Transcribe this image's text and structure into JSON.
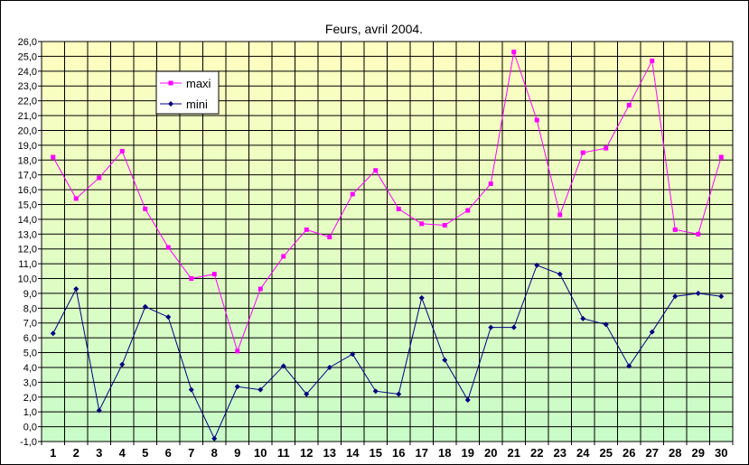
{
  "chart_data": {
    "type": "line",
    "title": "Feurs, avril 2004.",
    "xlabel": "",
    "ylabel": "",
    "categories": [
      "1",
      "2",
      "3",
      "4",
      "5",
      "6",
      "7",
      "8",
      "9",
      "10",
      "11",
      "12",
      "13",
      "14",
      "15",
      "16",
      "17",
      "18",
      "19",
      "20",
      "21",
      "22",
      "23",
      "24",
      "25",
      "26",
      "27",
      "28",
      "29",
      "30"
    ],
    "ylim": [
      -1,
      26
    ],
    "ytick_step": 1,
    "ytick_labels": [
      "-1,0",
      "0,0",
      "1,0",
      "2,0",
      "3,0",
      "4,0",
      "5,0",
      "6,0",
      "7,0",
      "8,0",
      "9,0",
      "10,0",
      "11,0",
      "12,0",
      "13,0",
      "14,0",
      "15,0",
      "16,0",
      "17,0",
      "18,0",
      "19,0",
      "20,0",
      "21,0",
      "22,0",
      "23,0",
      "24,0",
      "25,0",
      "26,0"
    ],
    "grid": true,
    "legend_position": "upper-left",
    "background_gradient": [
      "#ffffc0",
      "#c8fcc8"
    ],
    "series": [
      {
        "name": "maxi",
        "color": "#ff00ff",
        "marker": "square",
        "values": [
          18.2,
          15.4,
          16.8,
          18.6,
          14.7,
          12.1,
          10.0,
          10.3,
          5.1,
          9.3,
          11.5,
          13.3,
          12.8,
          15.7,
          17.3,
          14.7,
          13.7,
          13.6,
          14.6,
          16.4,
          25.3,
          20.7,
          14.3,
          18.5,
          18.8,
          21.7,
          24.7,
          13.3,
          13.0,
          18.2
        ]
      },
      {
        "name": "mini",
        "color": "#000080",
        "marker": "diamond",
        "values": [
          6.3,
          9.3,
          1.1,
          4.2,
          8.1,
          7.4,
          2.5,
          -0.8,
          2.7,
          2.5,
          4.1,
          2.2,
          4.0,
          4.9,
          2.4,
          2.2,
          8.7,
          4.5,
          1.8,
          6.7,
          6.7,
          10.9,
          10.3,
          7.3,
          6.9,
          4.1,
          6.4,
          8.8,
          9.0,
          8.8
        ]
      }
    ]
  }
}
